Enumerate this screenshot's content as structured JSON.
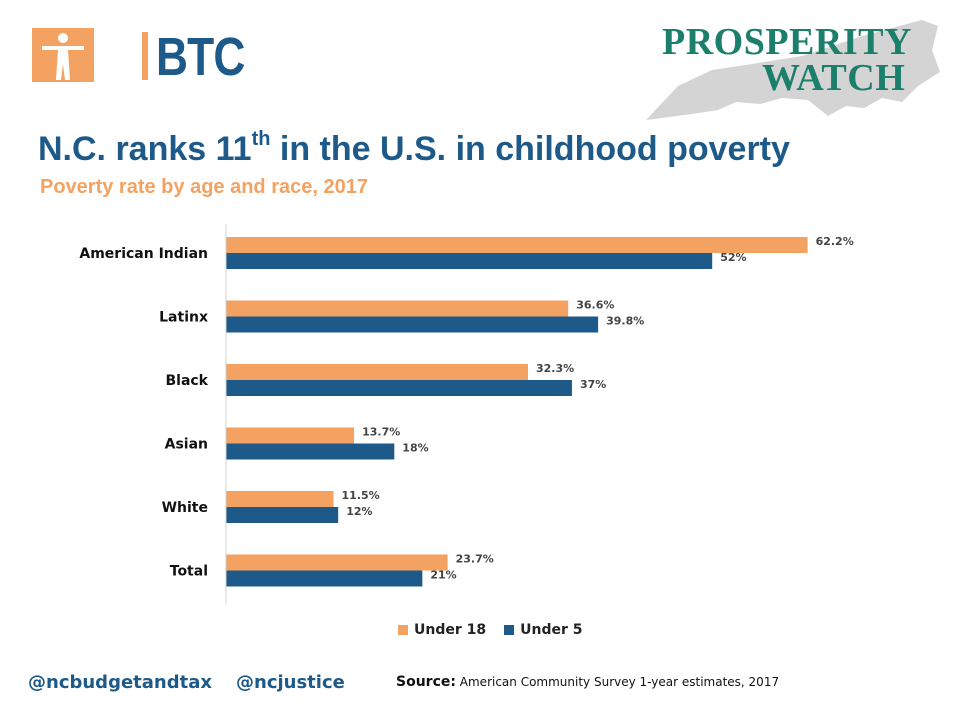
{
  "brand": {
    "btc_text": "BTC",
    "pw_line1": "PROSPERITY",
    "pw_line2": "WATCH"
  },
  "colors": {
    "under18": "#f4a261",
    "under5": "#1d5a89",
    "title": "#1d5a89",
    "subtitle": "#f4a261"
  },
  "footer": {
    "handle1": "@ncbudgetandtax",
    "handle2": "@ncjustice",
    "source_label": "Source:",
    "source_text": " American Community Survey 1-year estimates, 2017"
  },
  "chart_data": {
    "type": "bar",
    "orientation": "horizontal",
    "title_main": "N.C. ranks 11",
    "title_sup": "th",
    "title_rest": " in the U.S. in childhood poverty",
    "subtitle": "Poverty rate by age and race, 2017",
    "categories": [
      "American Indian",
      "Latinx",
      "Black",
      "Asian",
      "White",
      "Total"
    ],
    "series": [
      {
        "name": "Under 18",
        "color": "#f4a261",
        "values": [
          62.2,
          36.6,
          32.3,
          13.7,
          11.5,
          23.7
        ],
        "labels": [
          "62.2%",
          "36.6%",
          "32.3%",
          "13.7%",
          "11.5%",
          "23.7%"
        ]
      },
      {
        "name": "Under 5",
        "color": "#1d5a89",
        "values": [
          52,
          39.8,
          37,
          18,
          12,
          21
        ],
        "labels": [
          "52%",
          "39.8%",
          "37%",
          "18%",
          "12%",
          "21%"
        ]
      }
    ],
    "xlim": [
      0,
      70
    ],
    "grid": false,
    "legend_position": "bottom"
  }
}
